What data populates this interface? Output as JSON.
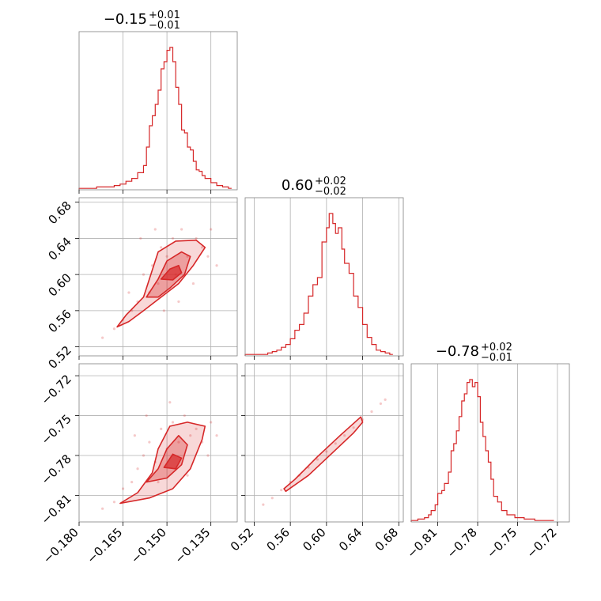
{
  "chart_data": {
    "type": "corner",
    "title": "",
    "color": "#d62728",
    "parameters": [
      {
        "title": {
          "median": "−0.15",
          "plus": "+0.01",
          "minus": "−0.01"
        },
        "ticks": [
          "−0.180",
          "−0.165",
          "−0.150",
          "−0.135"
        ],
        "tick_values": [
          -0.18,
          -0.165,
          -0.15,
          -0.135
        ],
        "range": [
          -0.18,
          -0.126
        ],
        "grid": [
          -0.165,
          -0.15,
          -0.135
        ],
        "hist": [
          {
            "x": -0.18,
            "y": 0.01
          },
          {
            "x": -0.177,
            "y": 0.01
          },
          {
            "x": -0.174,
            "y": 0.02
          },
          {
            "x": -0.171,
            "y": 0.02
          },
          {
            "x": -0.168,
            "y": 0.03
          },
          {
            "x": -0.166,
            "y": 0.04
          },
          {
            "x": -0.164,
            "y": 0.06
          },
          {
            "x": -0.162,
            "y": 0.08
          },
          {
            "x": -0.16,
            "y": 0.12
          },
          {
            "x": -0.158,
            "y": 0.17
          },
          {
            "x": -0.157,
            "y": 0.3
          },
          {
            "x": -0.156,
            "y": 0.45
          },
          {
            "x": -0.155,
            "y": 0.52
          },
          {
            "x": -0.154,
            "y": 0.6
          },
          {
            "x": -0.153,
            "y": 0.7
          },
          {
            "x": -0.152,
            "y": 0.85
          },
          {
            "x": -0.151,
            "y": 0.9
          },
          {
            "x": -0.15,
            "y": 0.98
          },
          {
            "x": -0.149,
            "y": 1.0
          },
          {
            "x": -0.148,
            "y": 0.9
          },
          {
            "x": -0.147,
            "y": 0.72
          },
          {
            "x": -0.146,
            "y": 0.6
          },
          {
            "x": -0.145,
            "y": 0.42
          },
          {
            "x": -0.144,
            "y": 0.4
          },
          {
            "x": -0.143,
            "y": 0.3
          },
          {
            "x": -0.142,
            "y": 0.28
          },
          {
            "x": -0.141,
            "y": 0.2
          },
          {
            "x": -0.14,
            "y": 0.14
          },
          {
            "x": -0.139,
            "y": 0.13
          },
          {
            "x": -0.138,
            "y": 0.1
          },
          {
            "x": -0.137,
            "y": 0.08
          },
          {
            "x": -0.135,
            "y": 0.05
          },
          {
            "x": -0.133,
            "y": 0.03
          },
          {
            "x": -0.131,
            "y": 0.02
          },
          {
            "x": -0.129,
            "y": 0.01
          }
        ]
      },
      {
        "title": {
          "median": "0.60",
          "plus": "+0.02",
          "minus": "−0.02"
        },
        "ticks": [
          "0.52",
          "0.56",
          "0.60",
          "0.64",
          "0.68"
        ],
        "tick_values": [
          0.52,
          0.56,
          0.6,
          0.64,
          0.68
        ],
        "range": [
          0.51,
          0.685
        ],
        "grid": [
          0.52,
          0.56,
          0.6,
          0.64,
          0.68
        ],
        "hist": [
          {
            "x": 0.51,
            "y": 0.01
          },
          {
            "x": 0.52,
            "y": 0.01
          },
          {
            "x": 0.535,
            "y": 0.02
          },
          {
            "x": 0.54,
            "y": 0.03
          },
          {
            "x": 0.545,
            "y": 0.04
          },
          {
            "x": 0.55,
            "y": 0.06
          },
          {
            "x": 0.555,
            "y": 0.08
          },
          {
            "x": 0.56,
            "y": 0.12
          },
          {
            "x": 0.565,
            "y": 0.18
          },
          {
            "x": 0.57,
            "y": 0.22
          },
          {
            "x": 0.575,
            "y": 0.3
          },
          {
            "x": 0.58,
            "y": 0.42
          },
          {
            "x": 0.585,
            "y": 0.5
          },
          {
            "x": 0.59,
            "y": 0.55
          },
          {
            "x": 0.595,
            "y": 0.8
          },
          {
            "x": 0.6,
            "y": 0.9
          },
          {
            "x": 0.603,
            "y": 1.0
          },
          {
            "x": 0.607,
            "y": 0.93
          },
          {
            "x": 0.61,
            "y": 0.86
          },
          {
            "x": 0.613,
            "y": 0.9
          },
          {
            "x": 0.617,
            "y": 0.75
          },
          {
            "x": 0.62,
            "y": 0.65
          },
          {
            "x": 0.625,
            "y": 0.58
          },
          {
            "x": 0.63,
            "y": 0.42
          },
          {
            "x": 0.635,
            "y": 0.34
          },
          {
            "x": 0.64,
            "y": 0.22
          },
          {
            "x": 0.645,
            "y": 0.13
          },
          {
            "x": 0.65,
            "y": 0.08
          },
          {
            "x": 0.655,
            "y": 0.04
          },
          {
            "x": 0.66,
            "y": 0.03
          },
          {
            "x": 0.665,
            "y": 0.02
          },
          {
            "x": 0.67,
            "y": 0.01
          }
        ]
      },
      {
        "title": {
          "median": "−0.78",
          "plus": "+0.02",
          "minus": "−0.01"
        },
        "ticks": [
          "−0.81",
          "−0.78",
          "−0.75",
          "−0.72"
        ],
        "tick_values": [
          -0.81,
          -0.78,
          -0.75,
          -0.72
        ],
        "range": [
          -0.83,
          -0.711
        ],
        "grid": [
          -0.81,
          -0.78,
          -0.75,
          -0.72
        ],
        "hist": [
          {
            "x": -0.83,
            "y": 0.01
          },
          {
            "x": -0.825,
            "y": 0.02
          },
          {
            "x": -0.82,
            "y": 0.03
          },
          {
            "x": -0.817,
            "y": 0.05
          },
          {
            "x": -0.815,
            "y": 0.08
          },
          {
            "x": -0.812,
            "y": 0.12
          },
          {
            "x": -0.81,
            "y": 0.2
          },
          {
            "x": -0.807,
            "y": 0.22
          },
          {
            "x": -0.805,
            "y": 0.27
          },
          {
            "x": -0.802,
            "y": 0.35
          },
          {
            "x": -0.8,
            "y": 0.5
          },
          {
            "x": -0.798,
            "y": 0.55
          },
          {
            "x": -0.796,
            "y": 0.64
          },
          {
            "x": -0.794,
            "y": 0.74
          },
          {
            "x": -0.792,
            "y": 0.85
          },
          {
            "x": -0.79,
            "y": 0.9
          },
          {
            "x": -0.788,
            "y": 0.98
          },
          {
            "x": -0.786,
            "y": 1.0
          },
          {
            "x": -0.784,
            "y": 0.95
          },
          {
            "x": -0.782,
            "y": 0.98
          },
          {
            "x": -0.78,
            "y": 0.88
          },
          {
            "x": -0.778,
            "y": 0.7
          },
          {
            "x": -0.776,
            "y": 0.6
          },
          {
            "x": -0.774,
            "y": 0.5
          },
          {
            "x": -0.772,
            "y": 0.42
          },
          {
            "x": -0.77,
            "y": 0.3
          },
          {
            "x": -0.768,
            "y": 0.18
          },
          {
            "x": -0.765,
            "y": 0.14
          },
          {
            "x": -0.762,
            "y": 0.08
          },
          {
            "x": -0.758,
            "y": 0.05
          },
          {
            "x": -0.752,
            "y": 0.03
          },
          {
            "x": -0.745,
            "y": 0.02
          },
          {
            "x": -0.737,
            "y": 0.01
          },
          {
            "x": -0.725,
            "y": 0.01
          }
        ]
      }
    ],
    "pairs": [
      {
        "x_param": 0,
        "y_param": 1,
        "scatter": [
          {
            "x": -0.172,
            "y": 0.53
          },
          {
            "x": -0.168,
            "y": 0.54
          },
          {
            "x": -0.165,
            "y": 0.55
          },
          {
            "x": -0.162,
            "y": 0.56
          },
          {
            "x": -0.16,
            "y": 0.57
          },
          {
            "x": -0.158,
            "y": 0.6
          },
          {
            "x": -0.156,
            "y": 0.58
          },
          {
            "x": -0.155,
            "y": 0.61
          },
          {
            "x": -0.153,
            "y": 0.59
          },
          {
            "x": -0.152,
            "y": 0.63
          },
          {
            "x": -0.15,
            "y": 0.62
          },
          {
            "x": -0.148,
            "y": 0.64
          },
          {
            "x": -0.147,
            "y": 0.6
          },
          {
            "x": -0.145,
            "y": 0.65
          },
          {
            "x": -0.143,
            "y": 0.62
          },
          {
            "x": -0.14,
            "y": 0.64
          },
          {
            "x": -0.138,
            "y": 0.63
          },
          {
            "x": -0.136,
            "y": 0.62
          },
          {
            "x": -0.133,
            "y": 0.61
          },
          {
            "x": -0.159,
            "y": 0.64
          },
          {
            "x": -0.154,
            "y": 0.65
          },
          {
            "x": -0.141,
            "y": 0.59
          },
          {
            "x": -0.146,
            "y": 0.57
          },
          {
            "x": -0.151,
            "y": 0.56
          },
          {
            "x": -0.135,
            "y": 0.65
          },
          {
            "x": -0.163,
            "y": 0.58
          }
        ],
        "contours": [
          [
            {
              "x": -0.167,
              "y": 0.542
            },
            {
              "x": -0.164,
              "y": 0.555
            },
            {
              "x": -0.158,
              "y": 0.575
            },
            {
              "x": -0.155,
              "y": 0.605
            },
            {
              "x": -0.153,
              "y": 0.625
            },
            {
              "x": -0.147,
              "y": 0.637
            },
            {
              "x": -0.14,
              "y": 0.638
            },
            {
              "x": -0.137,
              "y": 0.63
            },
            {
              "x": -0.141,
              "y": 0.61
            },
            {
              "x": -0.146,
              "y": 0.59
            },
            {
              "x": -0.152,
              "y": 0.575
            },
            {
              "x": -0.158,
              "y": 0.56
            },
            {
              "x": -0.163,
              "y": 0.548
            }
          ],
          [
            {
              "x": -0.157,
              "y": 0.575
            },
            {
              "x": -0.153,
              "y": 0.595
            },
            {
              "x": -0.15,
              "y": 0.615
            },
            {
              "x": -0.145,
              "y": 0.625
            },
            {
              "x": -0.142,
              "y": 0.62
            },
            {
              "x": -0.144,
              "y": 0.6
            },
            {
              "x": -0.149,
              "y": 0.585
            },
            {
              "x": -0.153,
              "y": 0.575
            }
          ],
          [
            {
              "x": -0.152,
              "y": 0.595
            },
            {
              "x": -0.149,
              "y": 0.606
            },
            {
              "x": -0.146,
              "y": 0.61
            },
            {
              "x": -0.145,
              "y": 0.602
            },
            {
              "x": -0.148,
              "y": 0.594
            }
          ]
        ]
      },
      {
        "x_param": 0,
        "y_param": 2,
        "scatter": [
          {
            "x": -0.172,
            "y": -0.82
          },
          {
            "x": -0.168,
            "y": -0.815
          },
          {
            "x": -0.165,
            "y": -0.805
          },
          {
            "x": -0.162,
            "y": -0.8
          },
          {
            "x": -0.16,
            "y": -0.79
          },
          {
            "x": -0.158,
            "y": -0.78
          },
          {
            "x": -0.156,
            "y": -0.77
          },
          {
            "x": -0.154,
            "y": -0.785
          },
          {
            "x": -0.152,
            "y": -0.76
          },
          {
            "x": -0.15,
            "y": -0.775
          },
          {
            "x": -0.148,
            "y": -0.755
          },
          {
            "x": -0.146,
            "y": -0.77
          },
          {
            "x": -0.144,
            "y": -0.75
          },
          {
            "x": -0.142,
            "y": -0.765
          },
          {
            "x": -0.14,
            "y": -0.76
          },
          {
            "x": -0.138,
            "y": -0.77
          },
          {
            "x": -0.136,
            "y": -0.78
          },
          {
            "x": -0.133,
            "y": -0.765
          },
          {
            "x": -0.157,
            "y": -0.75
          },
          {
            "x": -0.149,
            "y": -0.74
          },
          {
            "x": -0.161,
            "y": -0.765
          },
          {
            "x": -0.143,
            "y": -0.795
          },
          {
            "x": -0.135,
            "y": -0.755
          },
          {
            "x": -0.153,
            "y": -0.8
          }
        ],
        "contours": [
          [
            {
              "x": -0.166,
              "y": -0.816
            },
            {
              "x": -0.16,
              "y": -0.808
            },
            {
              "x": -0.155,
              "y": -0.793
            },
            {
              "x": -0.153,
              "y": -0.775
            },
            {
              "x": -0.149,
              "y": -0.758
            },
            {
              "x": -0.143,
              "y": -0.755
            },
            {
              "x": -0.137,
              "y": -0.758
            },
            {
              "x": -0.138,
              "y": -0.768
            },
            {
              "x": -0.142,
              "y": -0.79
            },
            {
              "x": -0.148,
              "y": -0.805
            },
            {
              "x": -0.156,
              "y": -0.812
            }
          ],
          [
            {
              "x": -0.157,
              "y": -0.8
            },
            {
              "x": -0.153,
              "y": -0.79
            },
            {
              "x": -0.15,
              "y": -0.775
            },
            {
              "x": -0.146,
              "y": -0.765
            },
            {
              "x": -0.143,
              "y": -0.772
            },
            {
              "x": -0.145,
              "y": -0.787
            },
            {
              "x": -0.15,
              "y": -0.797
            }
          ],
          [
            {
              "x": -0.151,
              "y": -0.789
            },
            {
              "x": -0.148,
              "y": -0.779
            },
            {
              "x": -0.145,
              "y": -0.782
            },
            {
              "x": -0.147,
              "y": -0.79
            }
          ]
        ]
      },
      {
        "x_param": 1,
        "y_param": 2,
        "scatter": [
          {
            "x": 0.53,
            "y": -0.817
          },
          {
            "x": 0.54,
            "y": -0.812
          },
          {
            "x": 0.55,
            "y": -0.806
          },
          {
            "x": 0.56,
            "y": -0.8
          },
          {
            "x": 0.57,
            "y": -0.795
          },
          {
            "x": 0.58,
            "y": -0.789
          },
          {
            "x": 0.59,
            "y": -0.783
          },
          {
            "x": 0.6,
            "y": -0.777
          },
          {
            "x": 0.61,
            "y": -0.771
          },
          {
            "x": 0.62,
            "y": -0.765
          },
          {
            "x": 0.63,
            "y": -0.759
          },
          {
            "x": 0.64,
            "y": -0.753
          },
          {
            "x": 0.65,
            "y": -0.747
          },
          {
            "x": 0.66,
            "y": -0.741
          },
          {
            "x": 0.665,
            "y": -0.738
          }
        ],
        "contours": [
          [
            {
              "x": 0.555,
              "y": -0.807
            },
            {
              "x": 0.58,
              "y": -0.795
            },
            {
              "x": 0.605,
              "y": -0.779
            },
            {
              "x": 0.63,
              "y": -0.763
            },
            {
              "x": 0.64,
              "y": -0.755
            },
            {
              "x": 0.638,
              "y": -0.751
            },
            {
              "x": 0.615,
              "y": -0.765
            },
            {
              "x": 0.59,
              "y": -0.781
            },
            {
              "x": 0.565,
              "y": -0.798
            },
            {
              "x": 0.553,
              "y": -0.805
            }
          ]
        ]
      }
    ]
  }
}
